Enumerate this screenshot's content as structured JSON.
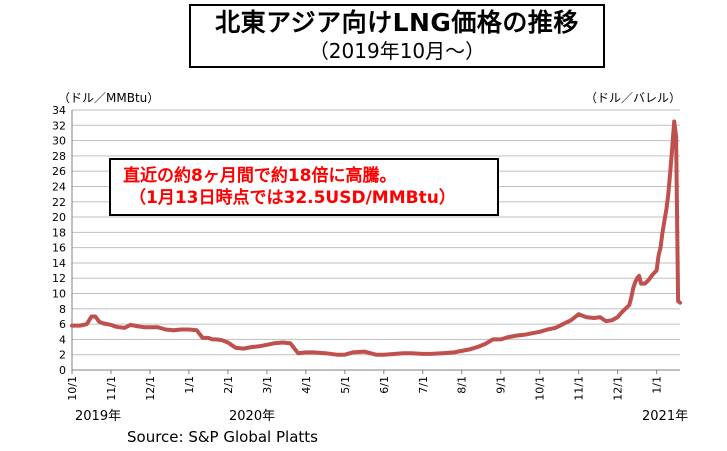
{
  "chart_data": {
    "type": "line",
    "title": "北東アジア向けLNG価格の推移",
    "subtitle": "（2019年10月～）",
    "ylabel_left": "（ドル／MMBtu）",
    "ylabel_right": "（ドル／バレル）",
    "ylim": [
      0,
      34
    ],
    "yticks": [
      "0",
      "2",
      "4",
      "6",
      "8",
      "10",
      "12",
      "14",
      "16",
      "18",
      "20",
      "22",
      "24",
      "26",
      "28",
      "30",
      "32",
      "34"
    ],
    "xticks": [
      "10/1",
      "11/1",
      "12/1",
      "1/1",
      "2/1",
      "3/1",
      "4/1",
      "5/1",
      "6/1",
      "7/1",
      "8/1",
      "9/1",
      "10/1",
      "11/1",
      "12/1",
      "1/1"
    ],
    "year_labels": [
      "2019年",
      "2020年",
      "2021年"
    ],
    "annotation": [
      "直近の約8ヶ月間で約18倍に高騰。",
      "（1月13日時点では32.5USD/MMBtu）"
    ],
    "source": "Source:  S&P Global Platts",
    "grid": true,
    "line_color": "#c0504d",
    "series": [
      {
        "x": [
          0,
          0.1,
          0.2,
          0.3,
          0.38,
          0.5,
          0.6,
          0.7,
          0.8,
          0.9,
          1.0,
          1.1,
          1.2,
          1.35,
          1.5,
          1.7,
          1.85,
          2.0,
          2.2,
          2.4,
          2.6,
          2.8,
          3.0,
          3.2,
          3.35,
          3.5,
          3.6,
          3.7,
          3.85,
          4.0,
          4.2,
          4.4,
          4.6,
          4.8,
          5.0,
          5.2,
          5.4,
          5.6,
          5.8,
          6.0,
          6.2,
          6.5,
          6.8,
          7.0,
          7.2,
          7.5,
          7.8,
          8.0,
          8.3,
          8.5,
          8.7,
          9.0,
          9.2,
          9.5,
          9.8,
          10.0,
          10.2,
          10.4,
          10.6,
          10.8,
          11.0,
          11.2,
          11.4,
          11.6,
          11.8,
          12.0,
          12.2,
          12.4,
          12.6,
          12.8,
          13.0,
          13.2,
          13.4,
          13.55,
          13.7,
          13.85,
          14.0,
          14.1,
          14.2,
          14.3,
          14.35,
          14.4,
          14.45,
          14.5,
          14.55,
          14.6,
          14.7,
          14.8,
          14.9,
          15.0,
          15.05,
          15.1,
          15.15,
          15.2,
          15.25,
          15.3,
          15.35,
          15.4,
          15.45,
          15.5,
          15.55,
          15.6
        ],
        "values": [
          5.8,
          5.8,
          5.8,
          5.9,
          6.0,
          7.0,
          7.0,
          6.3,
          6.1,
          6.0,
          5.9,
          5.7,
          5.6,
          5.5,
          5.9,
          5.7,
          5.6,
          5.6,
          5.6,
          5.3,
          5.2,
          5.3,
          5.3,
          5.2,
          4.2,
          4.2,
          4.0,
          4.0,
          3.9,
          3.6,
          2.9,
          2.8,
          3.0,
          3.1,
          3.3,
          3.5,
          3.6,
          3.5,
          2.2,
          2.3,
          2.3,
          2.2,
          2.0,
          2.0,
          2.3,
          2.4,
          2.0,
          2.0,
          2.1,
          2.2,
          2.2,
          2.1,
          2.1,
          2.2,
          2.3,
          2.5,
          2.7,
          3.0,
          3.4,
          4.0,
          4.0,
          4.3,
          4.5,
          4.6,
          4.8,
          5.0,
          5.3,
          5.5,
          6.0,
          6.5,
          7.3,
          6.9,
          6.8,
          6.9,
          6.4,
          6.5,
          6.9,
          7.5,
          8.0,
          8.5,
          9.5,
          10.7,
          11.5,
          12.0,
          12.3,
          11.3,
          11.3,
          11.8,
          12.5,
          13.0,
          15.0,
          16.0,
          18.0,
          19.5,
          21.0,
          23.0,
          26.0,
          29.0,
          32.5,
          30.5,
          9.0,
          8.8
        ]
      }
    ]
  }
}
